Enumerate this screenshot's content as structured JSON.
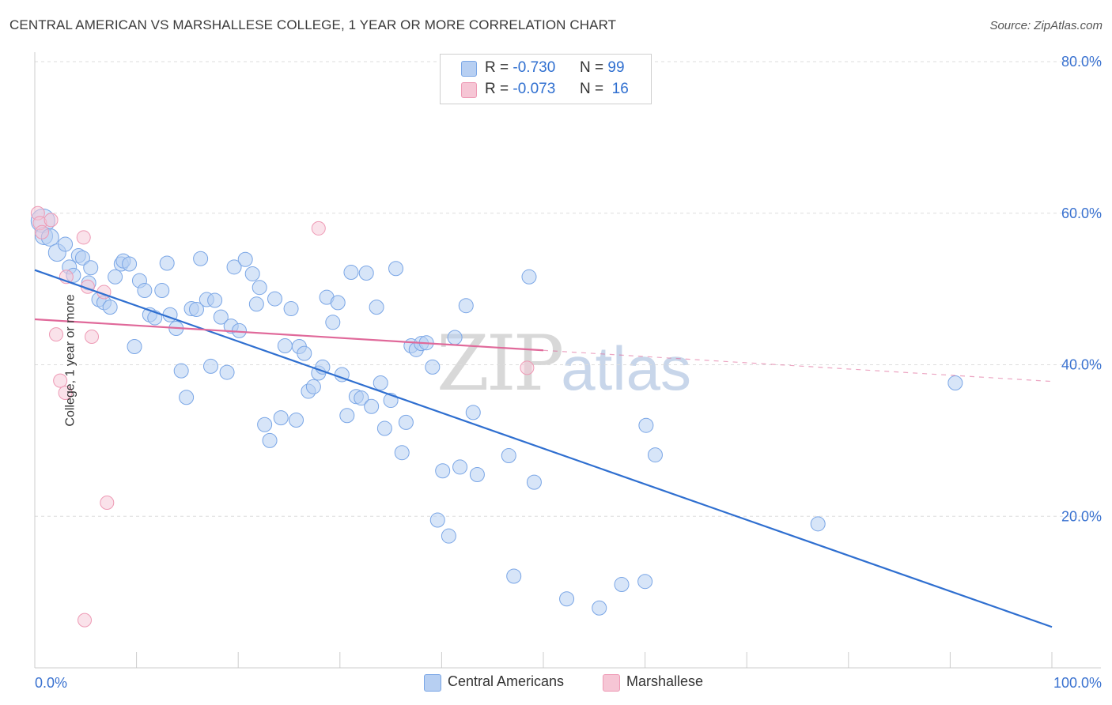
{
  "title": "CENTRAL AMERICAN VS MARSHALLESE COLLEGE, 1 YEAR OR MORE CORRELATION CHART",
  "source": "Source: ZipAtlas.com",
  "watermark": {
    "part1": "ZIP",
    "part2": "atlas"
  },
  "colors": {
    "blue": "#7aa6e6",
    "blue_fill": "#b7cff2",
    "pink": "#ee9ab5",
    "pink_fill": "#f6c6d5",
    "blue_line": "#2f6fd0",
    "pink_line": "#e0699a",
    "axis_text": "#3a72d0"
  },
  "legend_top": [
    {
      "r_label": "R =",
      "r_value": "-0.730",
      "n_label": "N =",
      "n_value": "99"
    },
    {
      "r_label": "R =",
      "r_value": "-0.073",
      "n_label": "N =",
      "n_value": "16"
    }
  ],
  "legend_bottom": [
    "Central Americans",
    "Marshallese"
  ],
  "chart_data": {
    "type": "scatter",
    "title": "CENTRAL AMERICAN VS MARSHALLESE COLLEGE, 1 YEAR OR MORE CORRELATION CHART",
    "xlabel": "",
    "ylabel": "College, 1 year or more",
    "xlim": [
      0,
      100
    ],
    "ylim": [
      0,
      80
    ],
    "x_tick_labels": [
      "0.0%",
      "100.0%"
    ],
    "y_tick_labels": [
      "20.0%",
      "40.0%",
      "60.0%",
      "80.0%"
    ],
    "y_ticks": [
      20,
      40,
      60,
      80
    ],
    "grid": true,
    "legend_placement": "bottom",
    "series": [
      {
        "name": "Central Americans",
        "r": -0.73,
        "n": 99,
        "trend": {
          "x": [
            0,
            100
          ],
          "y": [
            52.5,
            5.4
          ]
        },
        "points": [
          [
            0.8,
            59.0
          ],
          [
            0.9,
            57.0
          ],
          [
            1.5,
            56.8
          ],
          [
            2.2,
            54.8
          ],
          [
            3.0,
            55.9
          ],
          [
            3.4,
            52.9
          ],
          [
            3.8,
            51.8
          ],
          [
            4.3,
            54.4
          ],
          [
            4.7,
            54.1
          ],
          [
            5.5,
            52.8
          ],
          [
            5.3,
            50.8
          ],
          [
            6.3,
            48.6
          ],
          [
            6.8,
            48.2
          ],
          [
            7.4,
            47.6
          ],
          [
            7.9,
            51.6
          ],
          [
            8.5,
            53.3
          ],
          [
            8.7,
            53.7
          ],
          [
            9.3,
            53.3
          ],
          [
            9.8,
            42.4
          ],
          [
            10.3,
            51.1
          ],
          [
            10.8,
            49.8
          ],
          [
            11.3,
            46.6
          ],
          [
            11.8,
            46.2
          ],
          [
            12.5,
            49.8
          ],
          [
            13.0,
            53.4
          ],
          [
            13.3,
            46.6
          ],
          [
            13.9,
            44.8
          ],
          [
            14.4,
            39.2
          ],
          [
            14.9,
            35.7
          ],
          [
            15.4,
            47.4
          ],
          [
            15.9,
            47.3
          ],
          [
            16.3,
            54.0
          ],
          [
            16.9,
            48.6
          ],
          [
            17.3,
            39.8
          ],
          [
            17.7,
            48.5
          ],
          [
            18.3,
            46.3
          ],
          [
            18.9,
            39.0
          ],
          [
            19.3,
            45.1
          ],
          [
            19.6,
            52.9
          ],
          [
            20.1,
            44.5
          ],
          [
            20.7,
            53.9
          ],
          [
            21.4,
            52.0
          ],
          [
            21.8,
            48.0
          ],
          [
            22.1,
            50.2
          ],
          [
            22.6,
            32.1
          ],
          [
            23.1,
            30.0
          ],
          [
            23.6,
            48.7
          ],
          [
            24.2,
            33.0
          ],
          [
            24.6,
            42.5
          ],
          [
            25.2,
            47.4
          ],
          [
            25.7,
            32.7
          ],
          [
            26.0,
            42.4
          ],
          [
            26.5,
            41.5
          ],
          [
            26.9,
            36.5
          ],
          [
            27.4,
            37.1
          ],
          [
            27.9,
            38.9
          ],
          [
            28.3,
            39.7
          ],
          [
            28.7,
            48.9
          ],
          [
            29.3,
            45.6
          ],
          [
            29.8,
            48.2
          ],
          [
            30.2,
            38.7
          ],
          [
            30.7,
            33.3
          ],
          [
            31.1,
            52.2
          ],
          [
            31.6,
            35.8
          ],
          [
            32.1,
            35.6
          ],
          [
            32.6,
            52.1
          ],
          [
            33.1,
            34.5
          ],
          [
            33.6,
            47.6
          ],
          [
            34.0,
            37.6
          ],
          [
            34.4,
            31.6
          ],
          [
            35.0,
            35.3
          ],
          [
            35.5,
            52.7
          ],
          [
            36.1,
            28.4
          ],
          [
            36.5,
            32.4
          ],
          [
            37.0,
            42.5
          ],
          [
            37.5,
            42.0
          ],
          [
            38.0,
            42.8
          ],
          [
            38.5,
            42.9
          ],
          [
            39.1,
            39.7
          ],
          [
            39.6,
            19.5
          ],
          [
            40.1,
            26.0
          ],
          [
            40.7,
            17.4
          ],
          [
            41.3,
            43.6
          ],
          [
            41.8,
            26.5
          ],
          [
            42.4,
            47.8
          ],
          [
            43.1,
            33.7
          ],
          [
            43.5,
            25.5
          ],
          [
            46.6,
            28.0
          ],
          [
            47.1,
            12.1
          ],
          [
            49.1,
            24.5
          ],
          [
            48.6,
            51.6
          ],
          [
            52.3,
            9.1
          ],
          [
            55.5,
            7.9
          ],
          [
            57.7,
            11.0
          ],
          [
            60.0,
            11.4
          ],
          [
            60.1,
            32.0
          ],
          [
            61.0,
            28.1
          ],
          [
            77.0,
            19.0
          ],
          [
            90.5,
            37.6
          ]
        ]
      },
      {
        "name": "Marshallese",
        "r": -0.073,
        "n": 16,
        "trend": {
          "x": [
            0,
            50
          ],
          "y": [
            46.0,
            41.9
          ],
          "extended": {
            "x": [
              50,
              100
            ],
            "y": [
              41.9,
              37.8
            ]
          }
        },
        "points": [
          [
            0.3,
            60.0
          ],
          [
            0.5,
            58.7
          ],
          [
            0.7,
            57.5
          ],
          [
            1.6,
            59.1
          ],
          [
            3.1,
            51.6
          ],
          [
            5.6,
            43.7
          ],
          [
            2.1,
            44.0
          ],
          [
            2.5,
            37.9
          ],
          [
            3.0,
            36.3
          ],
          [
            4.8,
            56.8
          ],
          [
            5.2,
            50.3
          ],
          [
            6.8,
            49.6
          ],
          [
            7.1,
            21.8
          ],
          [
            27.9,
            58.0
          ],
          [
            48.4,
            39.6
          ],
          [
            4.9,
            6.3
          ]
        ]
      }
    ]
  }
}
